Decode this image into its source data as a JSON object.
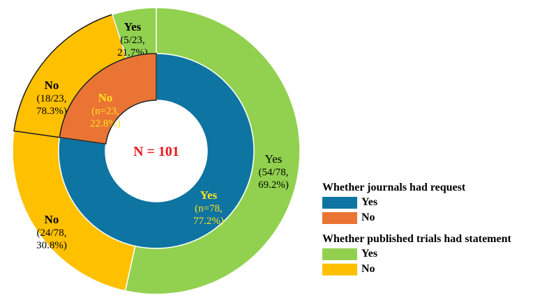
{
  "chart_data": {
    "type": "pie",
    "center_text": "N = 101",
    "inner": [
      {
        "label": "Yes",
        "value": 78,
        "text": [
          "Yes",
          "(n=78,",
          "77.2%)"
        ],
        "color": "#0e74a1",
        "text_color": "#ffe11f"
      },
      {
        "label": "No",
        "value": 23,
        "text": [
          "No",
          "(n=23,",
          "22.8%)"
        ],
        "color": "#ea7433",
        "text_color": "#ffe11f"
      }
    ],
    "outer": [
      {
        "label": "Yes",
        "value": 54,
        "text": [
          "Yes",
          "(54/78,",
          "69.2%)"
        ],
        "color": "#92d14f",
        "text_color": "#000000"
      },
      {
        "label": "No",
        "value": 24,
        "text": [
          "No",
          "(24/78,",
          "30.8%)"
        ],
        "color": "#ffc000",
        "text_color": "#000000"
      },
      {
        "label": "No",
        "value": 18,
        "text": [
          "No",
          "(18/23,",
          "78.3%)"
        ],
        "color": "#ffc000",
        "text_color": "#000000"
      },
      {
        "label": "Yes",
        "value": 5,
        "text": [
          "Yes",
          "(5/23,",
          "21.7%)"
        ],
        "color": "#92d14f",
        "text_color": "#000000"
      }
    ]
  },
  "legend": {
    "group1": {
      "title": "Whether journals had request",
      "items": [
        {
          "label": "Yes",
          "color": "#0e74a1"
        },
        {
          "label": "No",
          "color": "#ea7433"
        }
      ]
    },
    "group2": {
      "title": "Whether published trials had statement",
      "items": [
        {
          "label": "Yes",
          "color": "#92d14f"
        },
        {
          "label": "No",
          "color": "#ffc000"
        }
      ]
    }
  }
}
